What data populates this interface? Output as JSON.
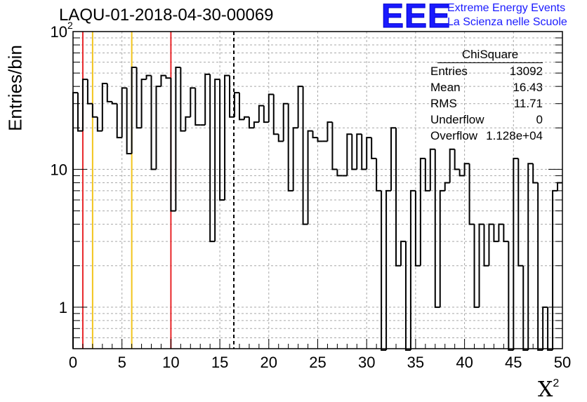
{
  "header": {
    "title": "LAQU-01-2018-04-30-00069"
  },
  "logo": {
    "mark": "EEE",
    "line1": "Extreme Energy Events",
    "line2": "La Scienza nelle Scuole"
  },
  "stats": {
    "title": "ChiSquare",
    "rows": [
      {
        "label": "Entries",
        "value": "13092"
      },
      {
        "label": "Mean",
        "value": "16.43"
      },
      {
        "label": "RMS",
        "value": "11.71"
      },
      {
        "label": "Underflow",
        "value": "0"
      },
      {
        "label": "Overflow",
        "value": "1.128e+04"
      }
    ]
  },
  "chart_data": {
    "type": "histogram",
    "title": "LAQU-01-2018-04-30-00069",
    "xlabel": "X",
    "xlabel_superscript": "2",
    "ylabel": "Entries/bin",
    "xlim": [
      0,
      50
    ],
    "ylim": [
      0.5,
      100
    ],
    "yscale": "log",
    "grid": true,
    "bin_width": 0.5,
    "x_ticks": [
      "0",
      "5",
      "10",
      "15",
      "20",
      "25",
      "30",
      "35",
      "40",
      "45",
      "50"
    ],
    "y_ticks": [
      {
        "value": 1,
        "label": "1"
      },
      {
        "value": 10,
        "label": "10"
      },
      {
        "value": 100,
        "label": "10",
        "exponent": "2"
      }
    ],
    "bin_contents": [
      36,
      19,
      45,
      30,
      24,
      19,
      42,
      31,
      30,
      17,
      39,
      13,
      55,
      20,
      45,
      48,
      10,
      40,
      48,
      46,
      5,
      55,
      19,
      24,
      39,
      21,
      21,
      49,
      3,
      45,
      6,
      48,
      24,
      36,
      23,
      24,
      20,
      22,
      29,
      22,
      35,
      18,
      16,
      30,
      7,
      20,
      40,
      4,
      19,
      17,
      16,
      16,
      22,
      10,
      9,
      9,
      18,
      10,
      18,
      10,
      17,
      12,
      7,
      0.3,
      7,
      20,
      2,
      3,
      0.3,
      7,
      2,
      12,
      7,
      14,
      1,
      7,
      8,
      14,
      10,
      9,
      11,
      4,
      1,
      4,
      2,
      4,
      3,
      4,
      3,
      0.3,
      12,
      2,
      0.3,
      11,
      8,
      0.3,
      1,
      0.3,
      7,
      8
    ],
    "vertical_lines": [
      {
        "x": 1.0,
        "color": "#e8262a",
        "style": "solid"
      },
      {
        "x": 2.0,
        "color": "#f2c51c",
        "style": "solid"
      },
      {
        "x": 6.0,
        "color": "#f2c51c",
        "style": "solid"
      },
      {
        "x": 10.0,
        "color": "#e8262a",
        "style": "solid"
      },
      {
        "x": 16.43,
        "color": "#000000",
        "style": "dashed"
      }
    ]
  }
}
